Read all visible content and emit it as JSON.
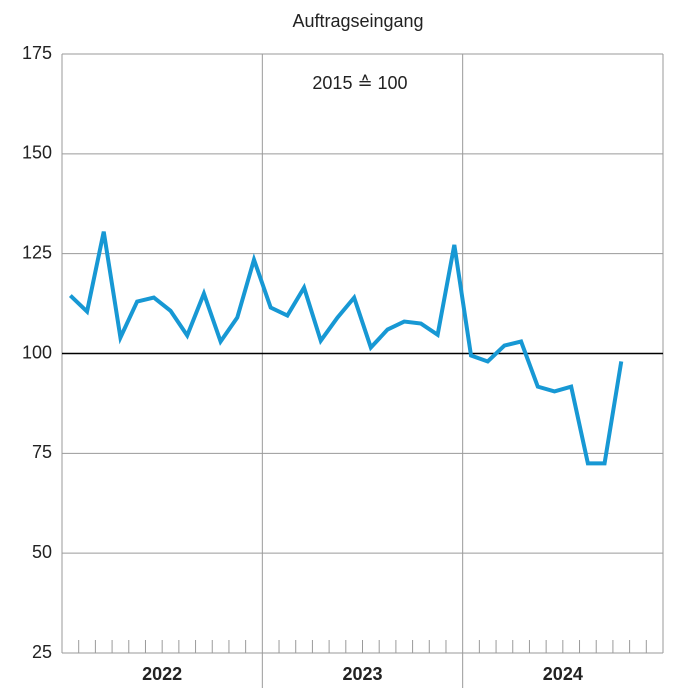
{
  "chart_data": {
    "type": "line",
    "title": "Auftragseingang",
    "annotation": "2015 ≙ 100",
    "x": [
      null,
      null,
      null,
      null,
      null,
      null,
      null,
      null,
      null,
      null,
      null,
      null,
      null,
      null,
      null,
      null,
      null,
      null,
      null,
      null,
      null,
      null,
      null,
      null,
      null,
      null,
      null,
      null,
      null,
      null,
      null,
      null,
      null,
      null
    ],
    "x_groups": [
      "2022",
      "2023",
      "2024"
    ],
    "series": [
      {
        "name": "Auftragseingang",
        "color": "#1798d4",
        "values": [
          114.5,
          110.5,
          130.5,
          104,
          113,
          114,
          110.7,
          104.5,
          115,
          103,
          109,
          123.5,
          111.5,
          109.5,
          116.5,
          103.2,
          109,
          114,
          101.5,
          106,
          108,
          107.5,
          104.7,
          127.2,
          99.5,
          98,
          102,
          103,
          91.7,
          90.5,
          91.7,
          72.5,
          72.5,
          98
        ]
      }
    ],
    "ylim": [
      25,
      175
    ],
    "yticks": [
      25,
      50,
      75,
      100,
      125,
      150,
      175
    ],
    "reference_line": 100,
    "grid": true
  }
}
